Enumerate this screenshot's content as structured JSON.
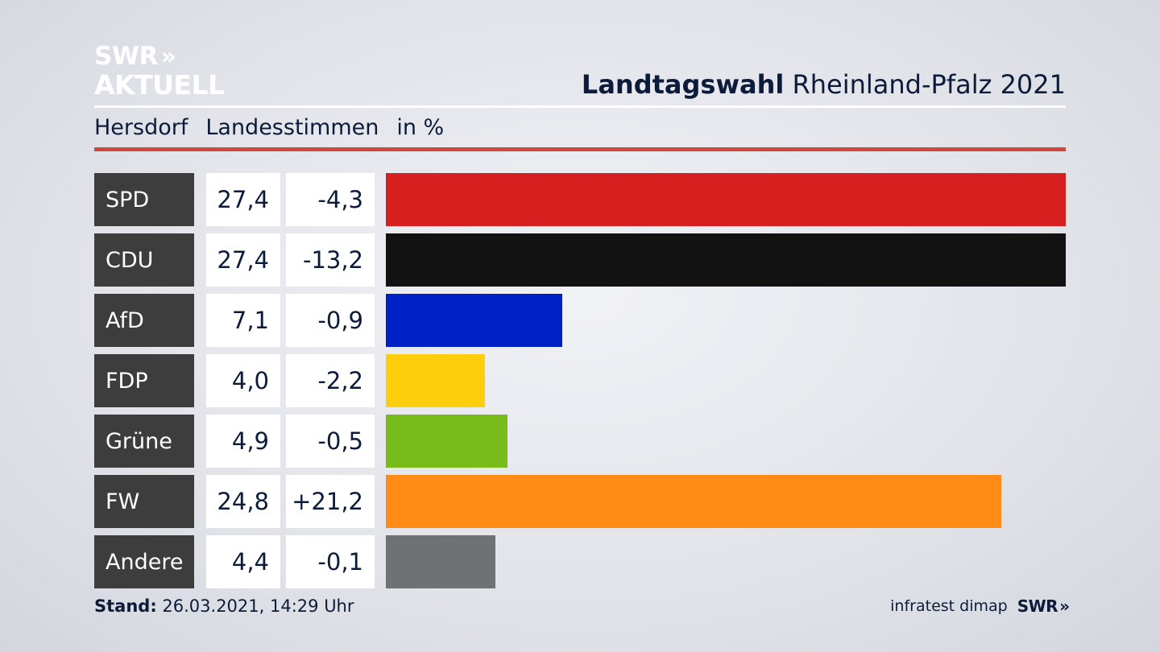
{
  "logo": {
    "line1": "SWR",
    "chevrons": "»",
    "line2": "AKTUELL"
  },
  "header": {
    "title_bold": "Landtagswahl",
    "title_rest": "Rheinland-Pfalz 2021"
  },
  "subheader": {
    "place": "Hersdorf",
    "vote_type": "Landesstimmen",
    "unit": "in %"
  },
  "footer": {
    "stand_label": "Stand:",
    "stand_value": "26.03.2021, 14:29 Uhr",
    "source": "infratest dimap",
    "brand": "SWR",
    "brand_chevrons": "»"
  },
  "chart_data": {
    "type": "bar",
    "orientation": "horizontal",
    "categories": [
      "SPD",
      "CDU",
      "AfD",
      "FDP",
      "Grüne",
      "FW",
      "Andere"
    ],
    "values": [
      27.4,
      27.4,
      7.1,
      4.0,
      4.9,
      24.8,
      4.4
    ],
    "value_labels": [
      "27,4",
      "27,4",
      "7,1",
      "4,0",
      "4,9",
      "24,8",
      "4,4"
    ],
    "change_labels": [
      "-4,3",
      "-13,2",
      "-0,9",
      "-2,2",
      "-0,5",
      "+21,2",
      "-0,1"
    ],
    "colors": [
      "#d61f1f",
      "#121212",
      "#0021c6",
      "#fecd0b",
      "#78bc1b",
      "#fe8c16",
      "#707173"
    ],
    "xlim": [
      0,
      27.4
    ],
    "grid": false,
    "legend": "none"
  }
}
